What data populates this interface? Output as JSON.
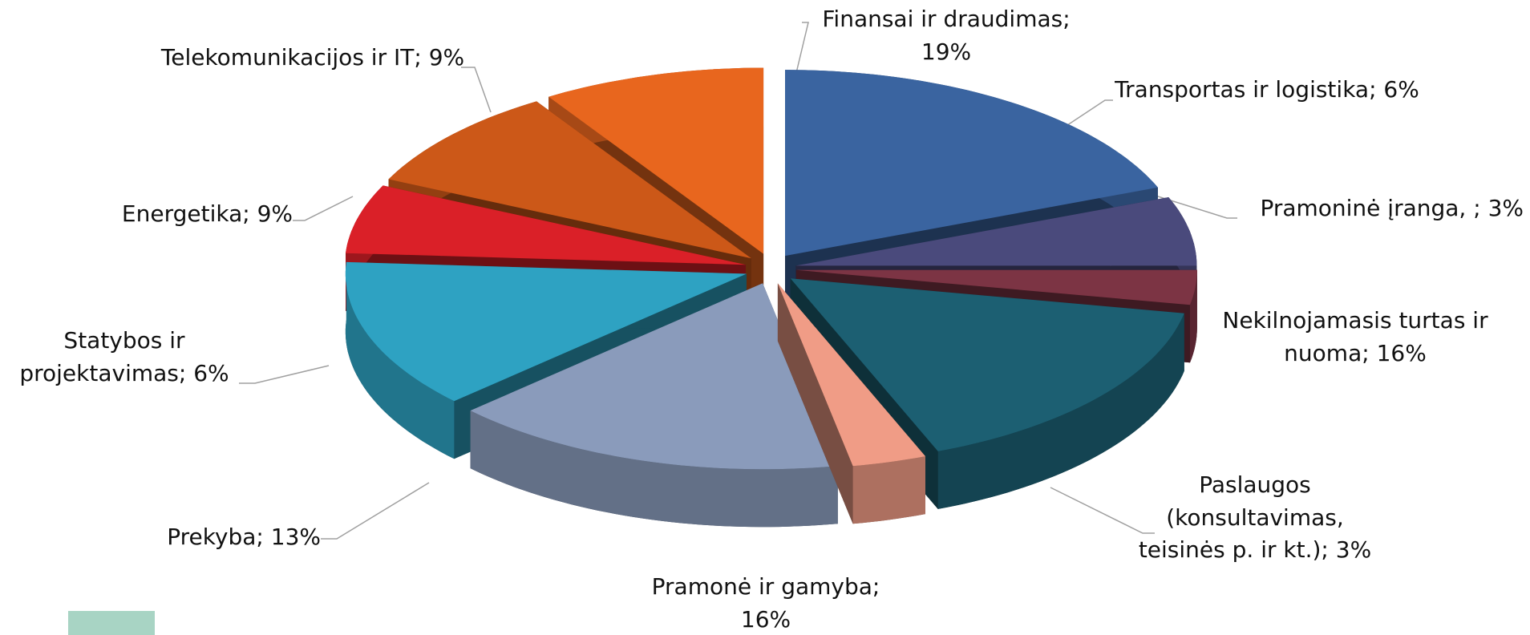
{
  "chart_data": {
    "type": "pie3d",
    "categories": [
      "Finansai ir draudimas;",
      "Transportas ir logistika;",
      "Pramoninė įranga, ;",
      "Nekilnojamasis turtas ir nuoma;",
      "Paslaugos (konsultavimas, teisinės p. ir kt.);",
      "Pramonė ir gamyba;",
      "Prekyba;",
      "Statybos ir projektavimas;",
      "Energetika;",
      "Telekomunikacijos ir IT;"
    ],
    "values": [
      19,
      6,
      3,
      16,
      3,
      16,
      13,
      6,
      9,
      9
    ],
    "value_labels": [
      "19%",
      "6%",
      "3%",
      "16%",
      "3%",
      "16%",
      "13%",
      "6%",
      "9%",
      "9%"
    ],
    "colors": [
      "#3a64a0",
      "#4a4a7c",
      "#7c3444",
      "#1c5f72",
      "#f09c86",
      "#8a9bbb",
      "#2ea2c2",
      "#da2028",
      "#cc5818",
      "#e8661e"
    ]
  }
}
